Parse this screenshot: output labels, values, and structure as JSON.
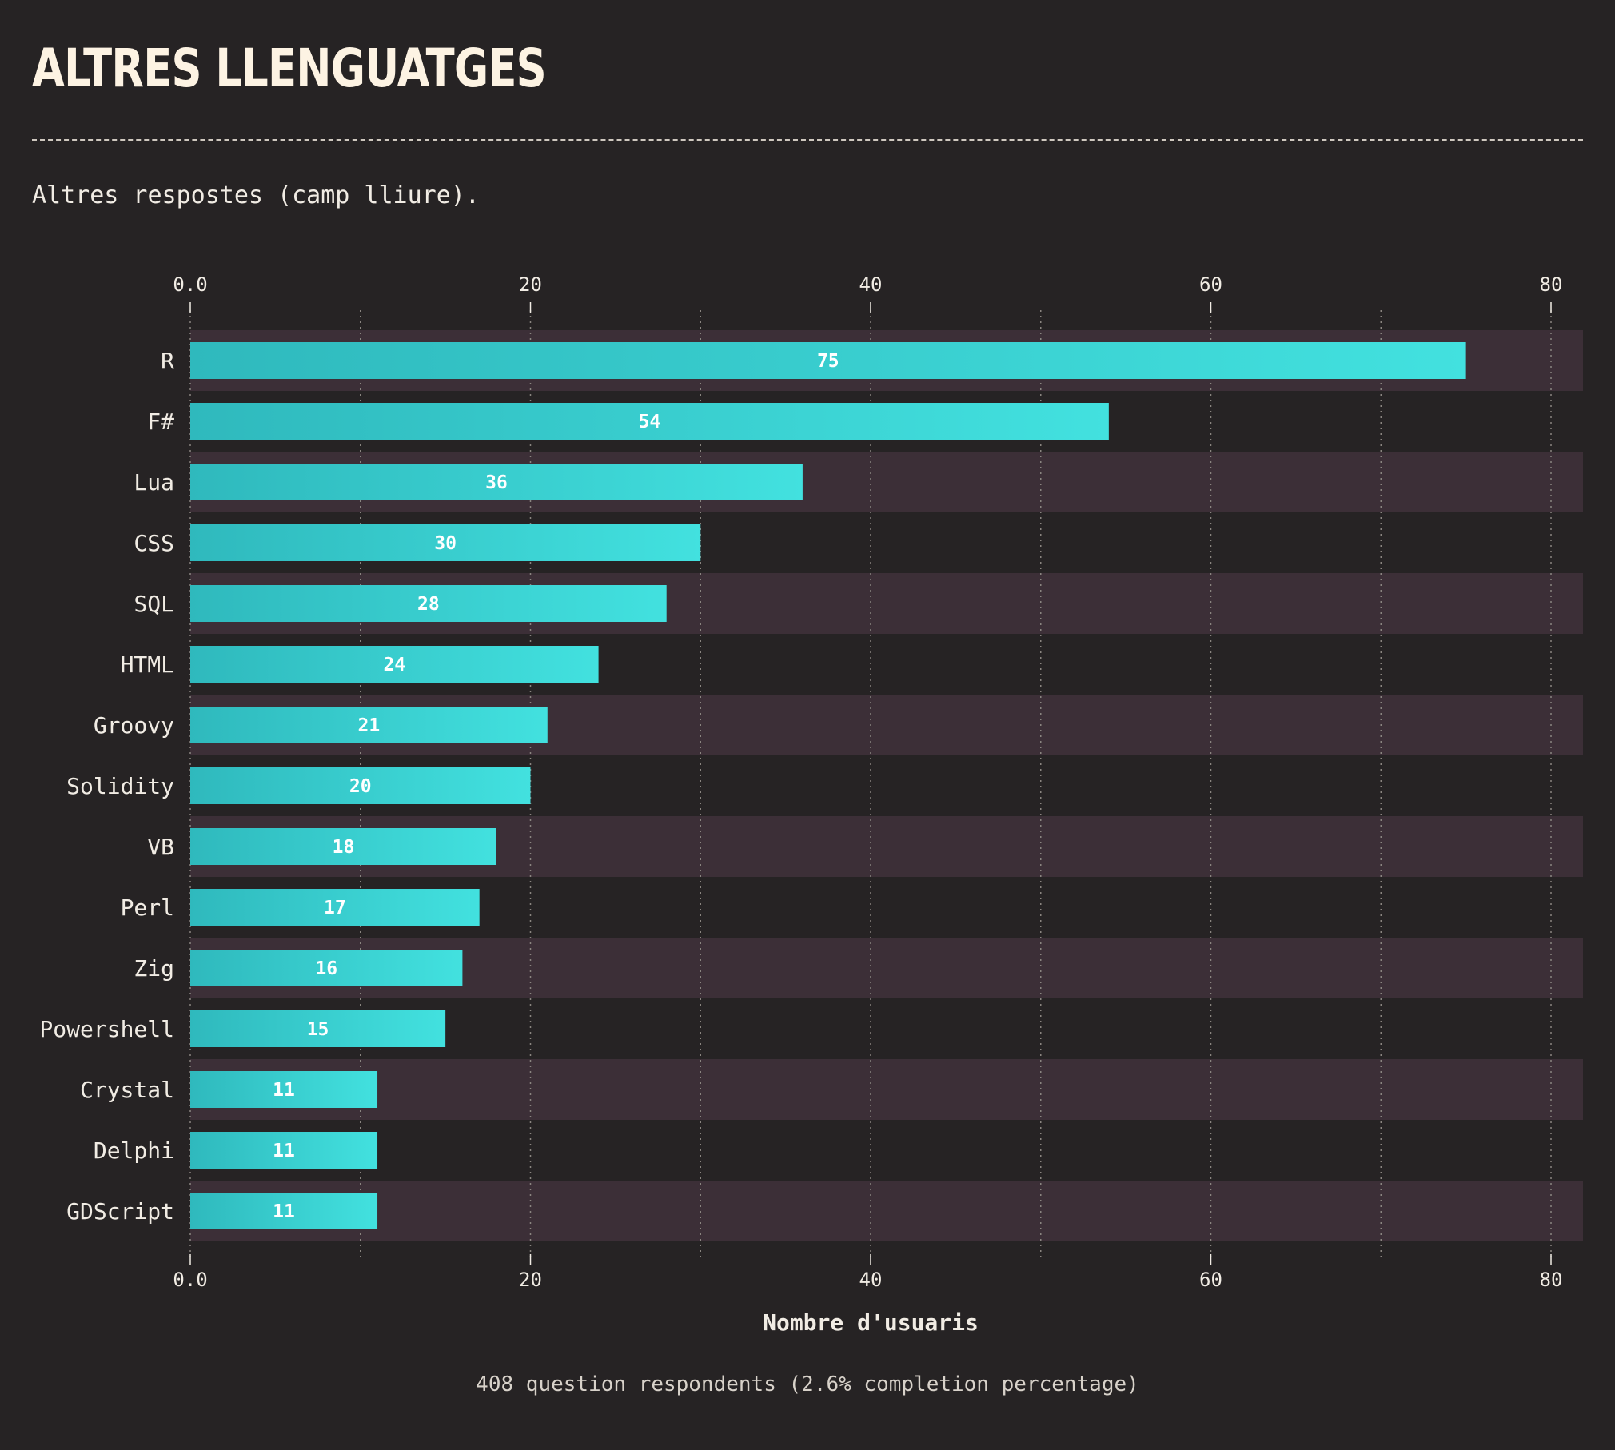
{
  "page": {
    "title": "ALTRES LLENGUATGES",
    "subtitle": "Altres respostes (camp lliure).",
    "footer": "408 question respondents (2.6% completion percentage)"
  },
  "colors": {
    "background": "#262324",
    "band": "#3c2f37",
    "bar_start": "#2fb9bd",
    "bar_end": "#42e1df",
    "text": "#f1ece4",
    "grid": "#8a8580"
  },
  "chart_data": {
    "type": "bar",
    "orientation": "horizontal",
    "categories": [
      "R",
      "F#",
      "Lua",
      "CSS",
      "SQL",
      "HTML",
      "Groovy",
      "Solidity",
      "VB",
      "Perl",
      "Zig",
      "Powershell",
      "Crystal",
      "Delphi",
      "GDScript"
    ],
    "values": [
      75,
      54,
      36,
      30,
      28,
      24,
      21,
      20,
      18,
      17,
      16,
      15,
      11,
      11,
      11
    ],
    "xlabel": "Nombre d'usuaris",
    "ylabel": "",
    "xlim": [
      0,
      82
    ],
    "xticks": [
      0,
      20,
      40,
      60,
      80
    ],
    "xtick_labels": [
      "0.0",
      "20",
      "40",
      "60",
      "80"
    ],
    "minor_gridlines": [
      10,
      30,
      50,
      70
    ],
    "axis_ticks_top": true,
    "axis_ticks_bottom": true,
    "grid": true,
    "data_labels": true
  }
}
